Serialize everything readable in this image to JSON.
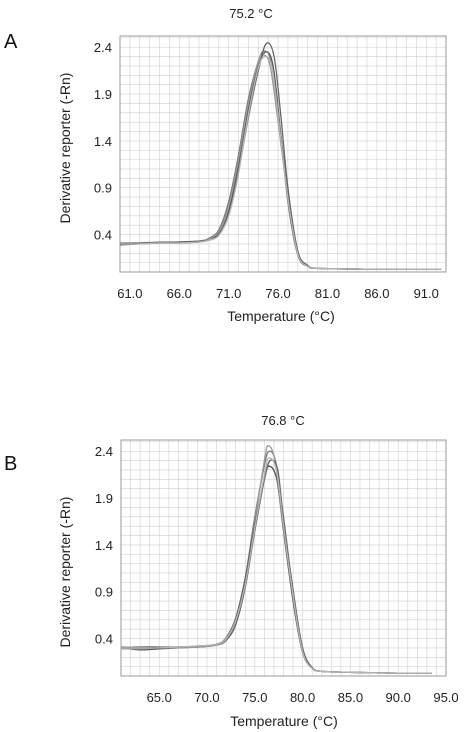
{
  "chart_data": [
    {
      "type": "line",
      "panel_letter": "A",
      "title": "75.2 °C",
      "xlabel": "Temperature (°C)",
      "ylabel": "Derivative reporter (-Rn)",
      "xlim": [
        60.0,
        93.0
      ],
      "ylim": [
        0.0,
        2.52
      ],
      "grid": true,
      "x_ticks": [
        "61.0",
        "66.0",
        "71.0",
        "76.0",
        "81.0",
        "86.0",
        "91.0"
      ],
      "x_tick_values": [
        61.0,
        66.0,
        71.0,
        76.0,
        81.0,
        86.0,
        91.0
      ],
      "y_ticks": [
        "0.4",
        "0.9",
        "1.4",
        "1.9",
        "2.4"
      ],
      "y_tick_values": [
        0.4,
        0.9,
        1.4,
        1.9,
        2.4
      ],
      "series": [
        {
          "x": [
            60.0,
            62,
            64,
            66,
            68,
            69,
            70,
            71,
            72,
            73,
            74,
            74.8,
            75.5,
            76.2,
            77,
            78,
            79,
            80,
            85,
            90,
            92.5
          ],
          "y": [
            0.29,
            0.3,
            0.31,
            0.31,
            0.32,
            0.34,
            0.4,
            0.65,
            1.15,
            1.75,
            2.2,
            2.35,
            2.2,
            1.55,
            0.75,
            0.18,
            0.06,
            0.04,
            0.03,
            0.03,
            0.03
          ]
        },
        {
          "x": [
            60.0,
            62,
            64,
            66,
            68,
            69,
            70,
            71,
            72,
            73,
            74,
            74.6,
            75.3,
            76,
            77,
            78,
            79,
            80,
            85,
            90,
            92.5
          ],
          "y": [
            0.31,
            0.31,
            0.32,
            0.32,
            0.33,
            0.36,
            0.45,
            0.75,
            1.25,
            1.85,
            2.25,
            2.36,
            2.25,
            1.7,
            0.85,
            0.22,
            0.07,
            0.04,
            0.03,
            0.03,
            0.03
          ]
        },
        {
          "x": [
            60.0,
            62,
            64,
            66,
            68,
            69,
            70,
            71,
            72,
            73,
            74,
            74.5,
            75.2,
            76,
            77,
            78,
            79,
            80,
            85,
            90,
            92.5
          ],
          "y": [
            0.3,
            0.3,
            0.31,
            0.32,
            0.33,
            0.35,
            0.43,
            0.7,
            1.2,
            1.8,
            2.25,
            2.32,
            2.2,
            1.6,
            0.8,
            0.2,
            0.07,
            0.04,
            0.03,
            0.03,
            0.03
          ]
        },
        {
          "x": [
            60.0,
            62,
            64,
            66,
            68,
            69,
            70,
            71,
            72,
            73,
            74,
            74.8,
            75.6,
            76.3,
            77,
            78,
            79,
            80,
            85,
            90,
            92.5
          ],
          "y": [
            0.3,
            0.31,
            0.31,
            0.32,
            0.33,
            0.34,
            0.41,
            0.62,
            1.08,
            1.65,
            2.15,
            2.44,
            2.3,
            1.65,
            0.9,
            0.22,
            0.07,
            0.04,
            0.03,
            0.03,
            0.03
          ]
        },
        {
          "x": [
            60.0,
            62,
            64,
            66,
            68,
            69,
            70,
            71,
            72,
            73,
            74,
            74.7,
            75.4,
            76.1,
            77,
            78,
            79,
            80,
            85,
            90,
            92.5
          ],
          "y": [
            0.3,
            0.3,
            0.31,
            0.31,
            0.32,
            0.34,
            0.39,
            0.6,
            1.05,
            1.68,
            2.18,
            2.3,
            2.18,
            1.58,
            0.78,
            0.19,
            0.06,
            0.04,
            0.03,
            0.03,
            0.03
          ]
        }
      ]
    },
    {
      "type": "line",
      "panel_letter": "B",
      "title": "76.8 °C",
      "xlabel": "Temperature (°C)",
      "ylabel": "Derivative reporter (-Rn)",
      "xlim": [
        61.0,
        95.0
      ],
      "ylim": [
        0.0,
        2.52
      ],
      "grid": true,
      "x_ticks": [
        "65.0",
        "70.0",
        "75.0",
        "80.0",
        "85.0",
        "90.0",
        "95.0"
      ],
      "x_tick_values": [
        65.0,
        70.0,
        75.0,
        80.0,
        85.0,
        90.0,
        95.0
      ],
      "y_ticks": [
        "0.4",
        "0.9",
        "1.4",
        "1.9",
        "2.4"
      ],
      "y_tick_values": [
        0.4,
        0.9,
        1.4,
        1.9,
        2.4
      ],
      "series": [
        {
          "x": [
            61.0,
            63,
            65,
            67,
            69,
            71,
            72,
            73,
            74,
            75,
            76,
            76.5,
            77.3,
            78,
            79,
            80,
            81,
            82,
            85,
            90,
            93.5
          ],
          "y": [
            0.3,
            0.28,
            0.29,
            0.3,
            0.31,
            0.33,
            0.38,
            0.55,
            0.95,
            1.55,
            2.1,
            2.24,
            2.1,
            1.55,
            0.8,
            0.25,
            0.08,
            0.05,
            0.04,
            0.03,
            0.03
          ]
        },
        {
          "x": [
            61.0,
            63,
            65,
            67,
            69,
            71,
            72,
            73,
            74,
            75,
            76,
            76.5,
            77.2,
            78,
            79,
            80,
            81,
            82,
            85,
            90,
            93.5
          ],
          "y": [
            0.31,
            0.3,
            0.3,
            0.31,
            0.31,
            0.34,
            0.4,
            0.6,
            1.05,
            1.7,
            2.25,
            2.4,
            2.28,
            1.7,
            0.9,
            0.28,
            0.09,
            0.05,
            0.04,
            0.03,
            0.03
          ]
        },
        {
          "x": [
            61.0,
            63,
            65,
            67,
            69,
            71,
            72,
            73,
            74,
            75,
            76,
            76.4,
            77.1,
            78,
            79,
            80,
            81,
            82,
            85,
            90,
            93.5
          ],
          "y": [
            0.29,
            0.29,
            0.3,
            0.3,
            0.31,
            0.33,
            0.39,
            0.58,
            1.0,
            1.65,
            2.3,
            2.46,
            2.3,
            1.6,
            0.85,
            0.27,
            0.08,
            0.05,
            0.04,
            0.03,
            0.03
          ]
        },
        {
          "x": [
            61.0,
            63,
            65,
            67,
            69,
            71,
            72,
            73,
            74,
            75,
            76,
            76.6,
            77.4,
            78,
            79,
            80,
            81,
            82,
            85,
            90,
            93.5
          ],
          "y": [
            0.3,
            0.31,
            0.31,
            0.31,
            0.32,
            0.34,
            0.41,
            0.62,
            1.05,
            1.62,
            2.1,
            2.3,
            2.2,
            1.65,
            0.92,
            0.3,
            0.09,
            0.05,
            0.04,
            0.03,
            0.03
          ]
        },
        {
          "x": [
            61.0,
            63,
            65,
            67,
            69,
            71,
            72,
            73,
            74,
            75,
            76,
            76.5,
            77.3,
            78,
            79,
            80,
            81,
            82,
            85,
            90,
            93.5
          ],
          "y": [
            0.3,
            0.3,
            0.3,
            0.31,
            0.32,
            0.34,
            0.4,
            0.59,
            0.98,
            1.58,
            2.15,
            2.33,
            2.18,
            1.6,
            0.86,
            0.26,
            0.08,
            0.05,
            0.04,
            0.03,
            0.03
          ]
        }
      ]
    }
  ],
  "colors": {
    "grid": "#cfcfcf",
    "frame": "#9a9a9a",
    "series": [
      "#555555",
      "#777777",
      "#999999",
      "#666666",
      "#b5b5b5"
    ]
  }
}
